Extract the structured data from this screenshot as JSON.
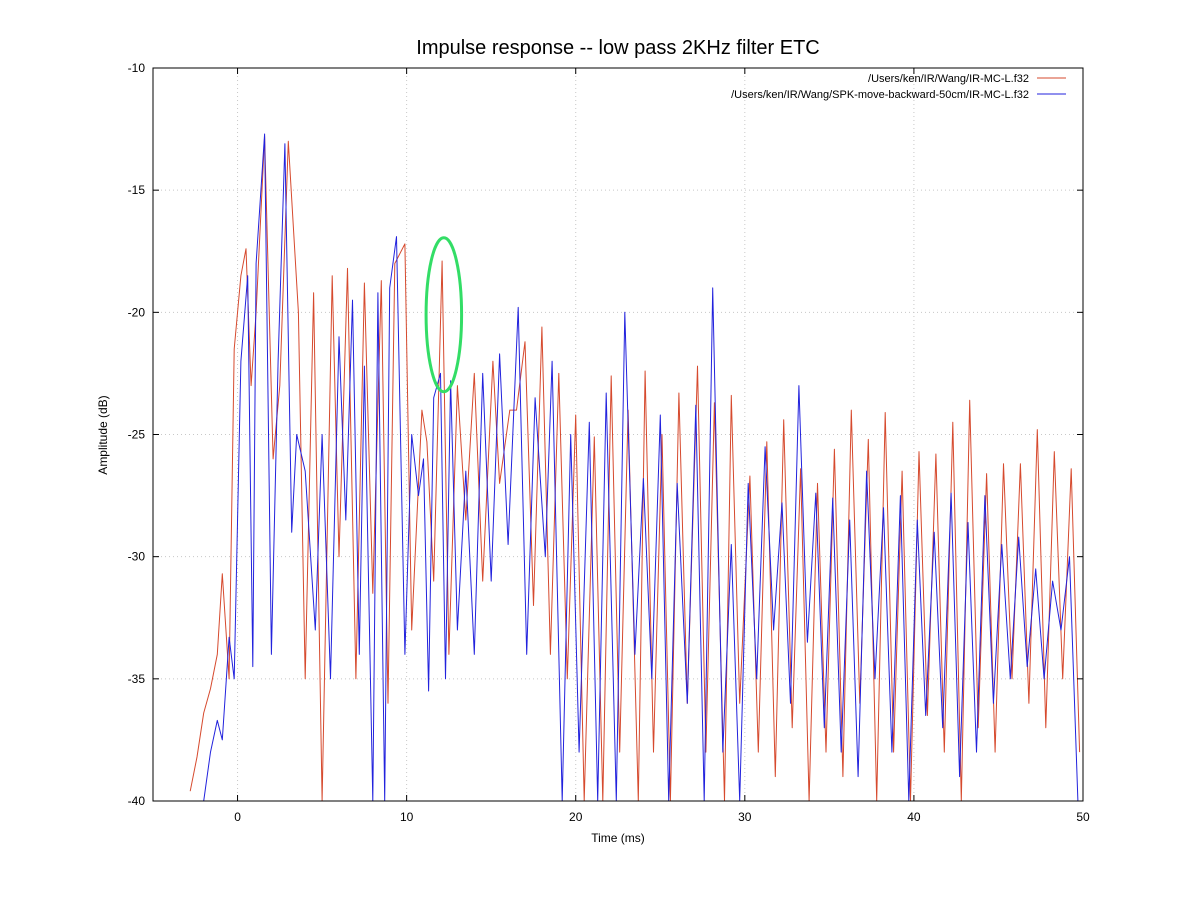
{
  "chart_data": {
    "type": "line",
    "title": "Impulse response -- low pass 2KHz filter ETC",
    "xlabel": "Time (ms)",
    "ylabel": "Amplitude (dB)",
    "xlim": [
      -5,
      50
    ],
    "ylim": [
      -40,
      -10
    ],
    "xticks": [
      0,
      10,
      20,
      30,
      40,
      50
    ],
    "yticks": [
      -10,
      -15,
      -20,
      -25,
      -30,
      -35,
      -40
    ],
    "grid": true,
    "legend_position": "top-right",
    "colors": {
      "series1": "#d64a2e",
      "series2": "#2222dd",
      "annotation": "#33dd66"
    },
    "series": [
      {
        "name": "/Users/ken/IR/Wang/IR-MC-L.f32",
        "x": [
          -2.8,
          -2.4,
          -2.0,
          -1.6,
          -1.2,
          -0.9,
          -0.5,
          -0.2,
          0.2,
          0.5,
          0.8,
          1.1,
          1.6,
          2.1,
          2.5,
          3.0,
          3.6,
          4.0,
          4.5,
          5.0,
          5.6,
          6.0,
          6.5,
          7.0,
          7.5,
          8.0,
          8.5,
          8.9,
          9.3,
          9.9,
          10.3,
          10.9,
          11.2,
          11.6,
          12.1,
          12.5,
          13.0,
          13.5,
          14.0,
          14.5,
          15.1,
          15.5,
          16.1,
          16.5,
          17.0,
          17.5,
          18.0,
          18.5,
          19.0,
          19.5,
          20.0,
          20.5,
          21.1,
          21.6,
          22.1,
          22.6,
          23.1,
          23.7,
          24.1,
          24.6,
          25.1,
          25.6,
          26.1,
          26.6,
          27.2,
          27.7,
          28.2,
          28.8,
          29.2,
          29.7,
          30.3,
          30.8,
          31.3,
          31.8,
          32.3,
          32.8,
          33.3,
          33.8,
          34.3,
          34.8,
          35.3,
          35.8,
          36.3,
          36.8,
          37.3,
          37.8,
          38.3,
          38.8,
          39.3,
          39.8,
          40.3,
          40.8,
          41.3,
          41.8,
          42.3,
          42.8,
          43.3,
          43.8,
          44.3,
          44.8,
          45.3,
          45.8,
          46.3,
          46.8,
          47.3,
          47.8,
          48.3,
          48.8,
          49.3,
          49.8
        ],
        "y": [
          -39.6,
          -38.2,
          -36.4,
          -35.4,
          -34.0,
          -30.7,
          -35.0,
          -21.5,
          -18.5,
          -17.4,
          -23.0,
          -20.0,
          -12.8,
          -26.0,
          -23.0,
          -13.0,
          -20.0,
          -35.0,
          -19.2,
          -40.0,
          -18.5,
          -30.0,
          -18.2,
          -35.0,
          -18.8,
          -31.5,
          -18.7,
          -36.0,
          -18.0,
          -17.2,
          -33.0,
          -24.0,
          -25.3,
          -31.0,
          -17.9,
          -34.0,
          -23.0,
          -28.5,
          -22.5,
          -31.0,
          -22.0,
          -27.0,
          -24.0,
          -24.0,
          -21.2,
          -32.0,
          -20.6,
          -34.0,
          -22.5,
          -35.0,
          -24.2,
          -40.0,
          -25.1,
          -40.0,
          -22.6,
          -38.0,
          -24.0,
          -40.0,
          -22.4,
          -38.0,
          -25.0,
          -40.0,
          -23.3,
          -36.0,
          -22.2,
          -38.0,
          -23.7,
          -40.0,
          -23.4,
          -36.0,
          -26.7,
          -38.0,
          -25.3,
          -39.0,
          -24.4,
          -37.0,
          -26.4,
          -40.0,
          -27.0,
          -38.0,
          -25.6,
          -39.0,
          -24.0,
          -36.0,
          -25.2,
          -40.0,
          -24.1,
          -38.0,
          -26.5,
          -40.0,
          -25.7,
          -36.5,
          -25.8,
          -38.0,
          -24.5,
          -40.0,
          -23.6,
          -37.0,
          -26.6,
          -38.0,
          -26.2,
          -35.0,
          -26.2,
          -36.0,
          -24.8,
          -37.0,
          -25.7,
          -35.0,
          -26.4,
          -38.0
        ]
      },
      {
        "name": "/Users/ken/IR/Wang/SPK-move-backward-50cm/IR-MC-L.f32",
        "x": [
          -2.0,
          -1.6,
          -1.2,
          -0.9,
          -0.5,
          -0.2,
          0.2,
          0.6,
          0.9,
          1.1,
          1.6,
          2.0,
          2.4,
          2.8,
          3.2,
          3.5,
          4.0,
          4.6,
          5.0,
          5.5,
          6.0,
          6.4,
          6.8,
          7.2,
          7.5,
          8.0,
          8.3,
          8.7,
          9.0,
          9.4,
          9.9,
          10.3,
          10.7,
          11.0,
          11.3,
          11.6,
          12.0,
          12.3,
          12.6,
          13.0,
          13.5,
          14.0,
          14.5,
          15.0,
          15.5,
          16.0,
          16.6,
          17.1,
          17.6,
          18.2,
          18.6,
          19.2,
          19.7,
          20.2,
          20.8,
          21.3,
          21.8,
          22.4,
          22.9,
          23.5,
          24.0,
          24.5,
          25.0,
          25.5,
          26.0,
          26.6,
          27.1,
          27.6,
          28.1,
          28.7,
          29.2,
          29.7,
          30.2,
          30.7,
          31.2,
          31.7,
          32.2,
          32.7,
          33.2,
          33.7,
          34.2,
          34.7,
          35.2,
          35.7,
          36.2,
          36.7,
          37.2,
          37.7,
          38.2,
          38.7,
          39.2,
          39.7,
          40.2,
          40.7,
          41.2,
          41.7,
          42.2,
          42.7,
          43.2,
          43.7,
          44.2,
          44.7,
          45.2,
          45.7,
          46.2,
          46.7,
          47.2,
          47.7,
          48.2,
          48.7,
          49.2,
          49.7
        ],
        "y": [
          -40.0,
          -38.0,
          -36.7,
          -37.5,
          -33.3,
          -35.0,
          -22.0,
          -18.5,
          -34.5,
          -18.0,
          -12.7,
          -34.0,
          -22.0,
          -13.1,
          -29.0,
          -25.0,
          -26.5,
          -33.0,
          -25.0,
          -35.0,
          -21.0,
          -28.5,
          -19.5,
          -34.0,
          -22.2,
          -40.0,
          -19.2,
          -40.0,
          -19.0,
          -16.9,
          -34.0,
          -25.0,
          -27.5,
          -26.0,
          -35.5,
          -23.5,
          -22.5,
          -35.0,
          -22.8,
          -33.0,
          -26.5,
          -34.0,
          -22.5,
          -31.0,
          -21.7,
          -29.5,
          -19.8,
          -34.0,
          -23.5,
          -30.0,
          -22.0,
          -40.0,
          -25.0,
          -38.0,
          -24.5,
          -40.0,
          -23.3,
          -40.0,
          -20.0,
          -34.0,
          -26.8,
          -35.0,
          -24.2,
          -40.0,
          -27.0,
          -36.0,
          -23.8,
          -40.0,
          -19.0,
          -38.0,
          -29.5,
          -40.0,
          -27.0,
          -35.0,
          -25.5,
          -33.0,
          -27.8,
          -36.0,
          -23.0,
          -33.5,
          -27.4,
          -37.0,
          -27.6,
          -38.0,
          -28.5,
          -39.0,
          -26.5,
          -35.0,
          -28.0,
          -38.0,
          -27.5,
          -40.0,
          -28.5,
          -36.5,
          -29.0,
          -37.0,
          -27.4,
          -39.0,
          -28.6,
          -38.0,
          -27.5,
          -36.0,
          -29.5,
          -35.0,
          -29.2,
          -34.5,
          -30.5,
          -35.0,
          -31.0,
          -33.0,
          -30.0,
          -40.0
        ]
      }
    ],
    "annotations": [
      {
        "shape": "ellipse",
        "color": "#33dd66",
        "cx": 12.2,
        "cy": -20.1,
        "rx": 1.05,
        "ry": 3.15
      }
    ]
  }
}
